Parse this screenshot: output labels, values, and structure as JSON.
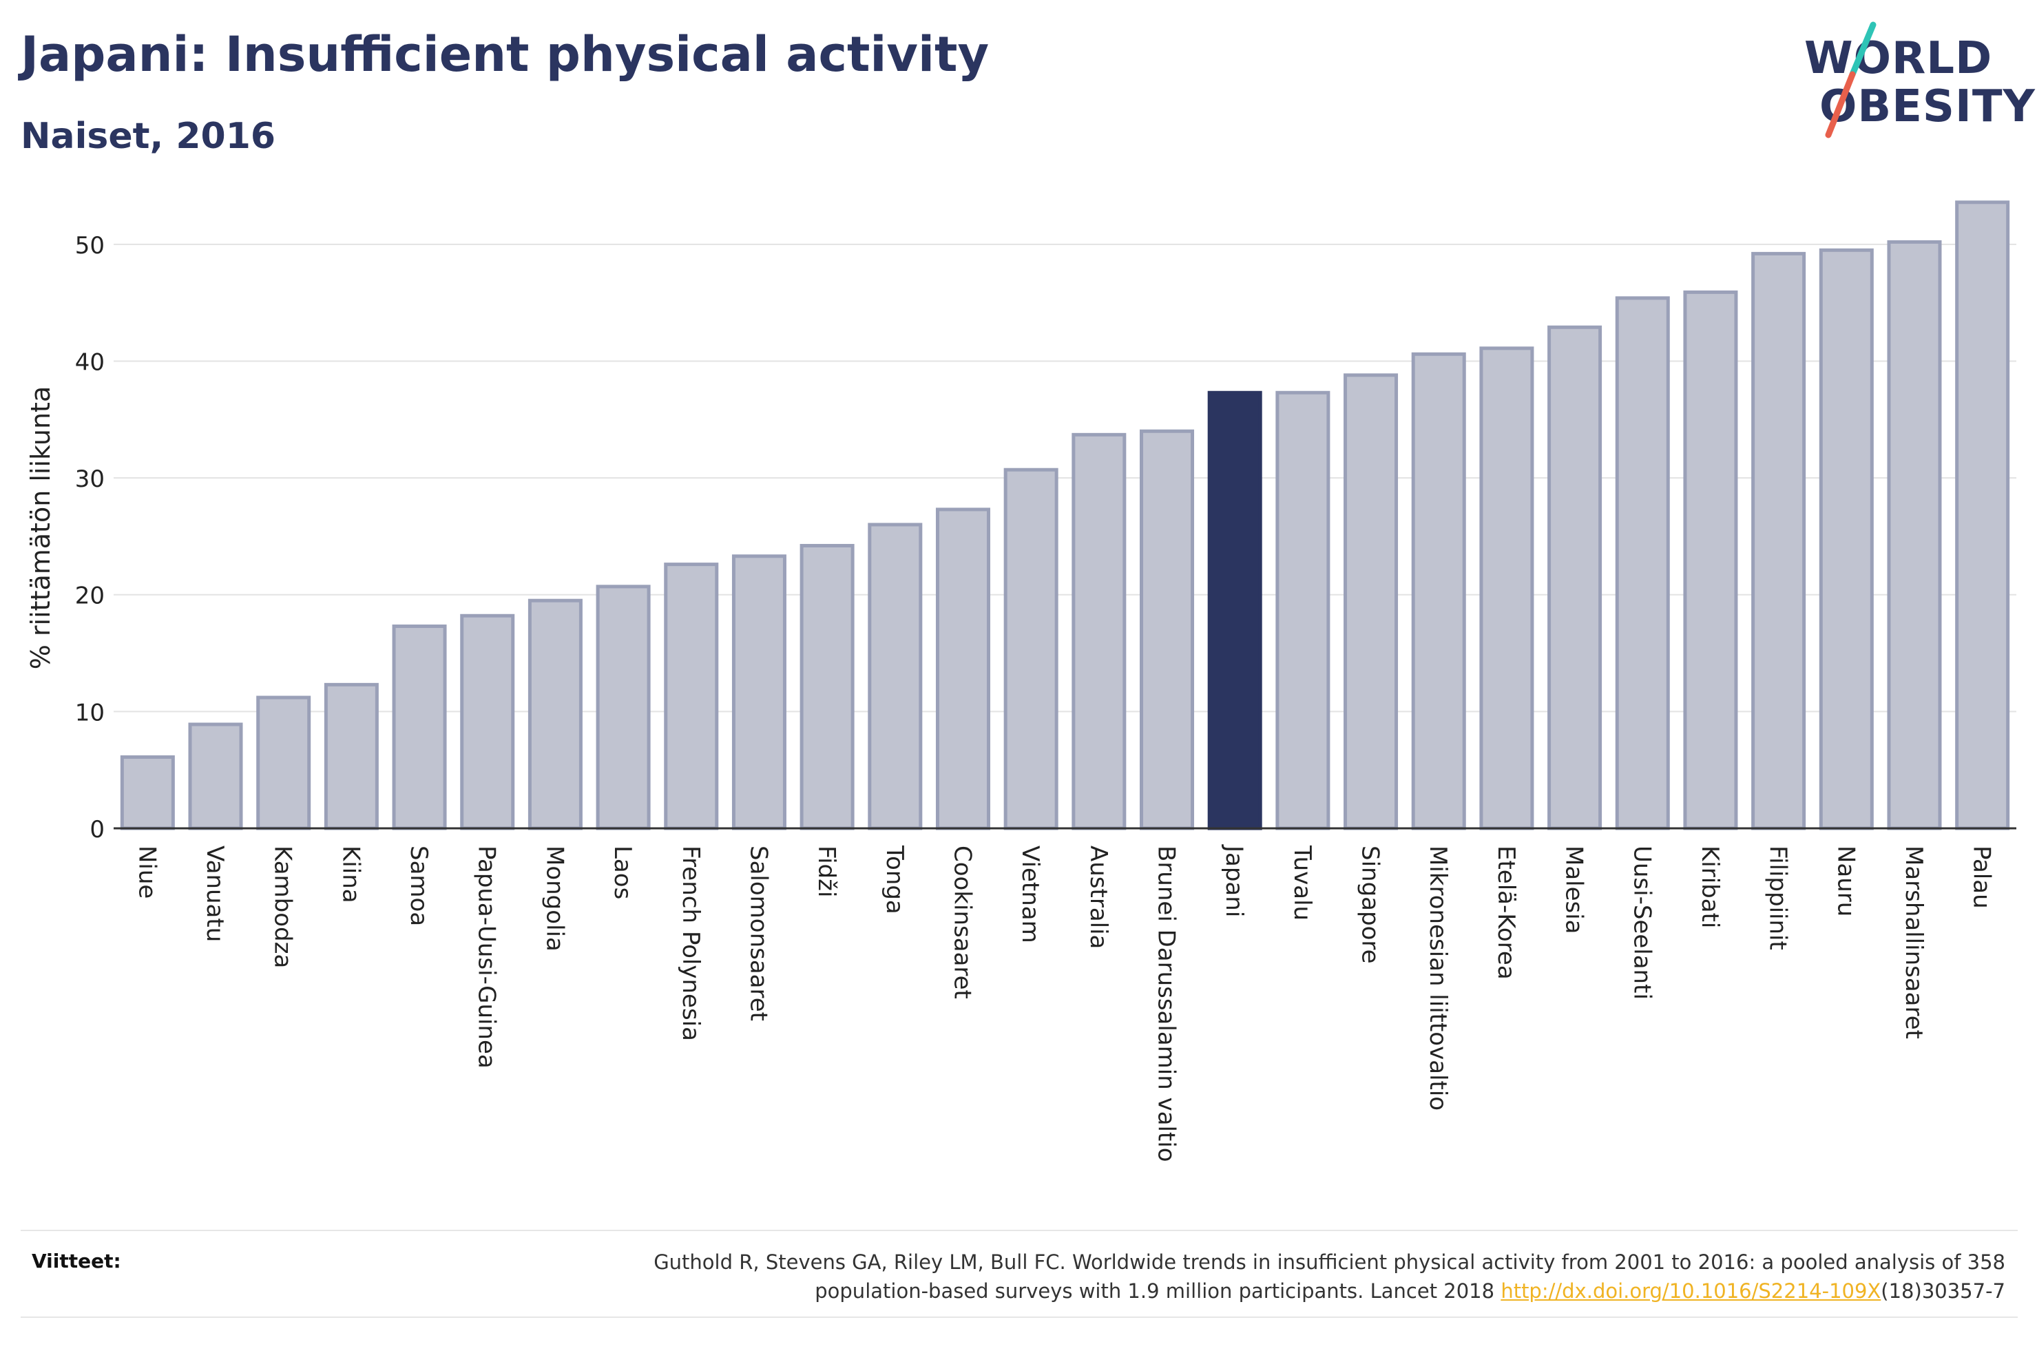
{
  "header": {
    "title": "Japani: Insufficient physical activity",
    "subtitle": "Naiset, 2016"
  },
  "logo": {
    "line1": "WORLD",
    "line2": "OBESITY",
    "slash_colors": [
      "#2ec4b6",
      "#e8604c"
    ]
  },
  "colors": {
    "bar_default_fill": "#c0c3d0",
    "bar_default_stroke": "#9aa0b8",
    "bar_highlight": "#2b3560",
    "text_primary": "#2b3560",
    "link": "#f0b323"
  },
  "chart_data": {
    "type": "bar",
    "ylabel": "% riittämätön liikunta",
    "ylim": [
      0,
      55
    ],
    "yticks": [
      0,
      10,
      20,
      30,
      40,
      50
    ],
    "grid": true,
    "highlight": "Japani",
    "categories": [
      "Niue",
      "Vanuatu",
      "Kambodza",
      "Kiina",
      "Samoa",
      "Papua-Uusi-Guinea",
      "Mongolia",
      "Laos",
      "French Polynesia",
      "Salomonsaaret",
      "Fidži",
      "Tonga",
      "Cookinsaaret",
      "Vietnam",
      "Australia",
      "Brunei Darussalamin valtio",
      "Japani",
      "Tuvalu",
      "Singapore",
      "Mikronesian liittovaltio",
      "Etelä-Korea",
      "Malesia",
      "Uusi-Seelanti",
      "Kiribati",
      "Filippiinit",
      "Nauru",
      "Marshallinsaaret",
      "Palau"
    ],
    "values": [
      6.1,
      8.9,
      11.2,
      12.3,
      17.3,
      18.2,
      19.5,
      20.7,
      22.6,
      23.3,
      24.2,
      26.0,
      27.3,
      30.7,
      33.7,
      34.0,
      37.3,
      37.3,
      38.8,
      40.6,
      41.1,
      42.9,
      45.4,
      45.9,
      49.2,
      49.5,
      50.2,
      53.6
    ]
  },
  "footer": {
    "label": "Viitteet:",
    "ref_line1": "Guthold R, Stevens GA, Riley LM, Bull FC. Worldwide trends in insufficient physical activity from 2001 to 2016: a pooled analysis of 358",
    "ref_line2_pre": "population-based surveys with 1.9 million participants. Lancet 2018 ",
    "ref_link": "http://dx.doi.org/10.1016/S2214-109X",
    "ref_line2_post": "(18)30357-7"
  }
}
